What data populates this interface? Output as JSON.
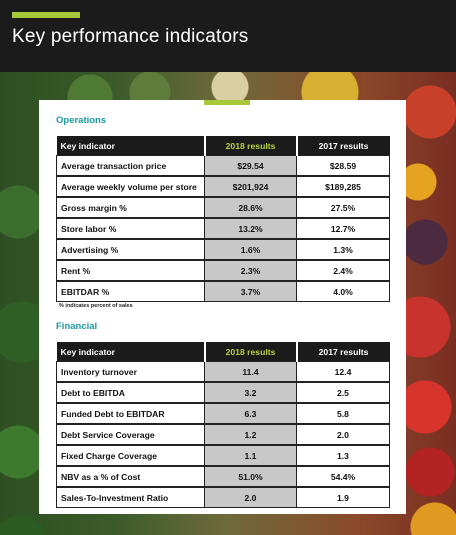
{
  "header": {
    "title": "Key performance indicators"
  },
  "operations": {
    "section_title": "Operations",
    "columns": [
      "Key indicator",
      "2018 results",
      "2017 results"
    ],
    "rows": [
      {
        "label": "Average transaction price",
        "v2018": "$29.54",
        "v2017": "$28.59"
      },
      {
        "label": "Average weekly volume per store",
        "v2018": "$201,924",
        "v2017": "$189,285"
      },
      {
        "label": "Gross margin %",
        "v2018": "28.6%",
        "v2017": "27.5%"
      },
      {
        "label": "Store labor %",
        "v2018": "13.2%",
        "v2017": "12.7%"
      },
      {
        "label": "Advertising %",
        "v2018": "1.6%",
        "v2017": "1.3%"
      },
      {
        "label": "Rent %",
        "v2018": "2.3%",
        "v2017": "2.4%"
      },
      {
        "label": "EBITDAR %",
        "v2018": "3.7%",
        "v2017": "4.0%"
      }
    ],
    "footnote": "% indicates percent of sales"
  },
  "financial": {
    "section_title": "Financial",
    "columns": [
      "Key indicator",
      "2018 results",
      "2017 results"
    ],
    "rows": [
      {
        "label": "Inventory turnover",
        "v2018": "11.4",
        "v2017": "12.4"
      },
      {
        "label": "Debt to EBITDA",
        "v2018": "3.2",
        "v2017": "2.5"
      },
      {
        "label": "Funded Debt to EBITDAR",
        "v2018": "6.3",
        "v2017": "5.8"
      },
      {
        "label": "Debt Service Coverage",
        "v2018": "1.2",
        "v2017": "2.0"
      },
      {
        "label": "Fixed Charge Coverage",
        "v2018": "1.1",
        "v2017": "1.3"
      },
      {
        "label": "NBV as a % of Cost",
        "v2018": "51.0%",
        "v2017": "54.4%"
      },
      {
        "label": "Sales-To-Investment Ratio",
        "v2018": "2.0",
        "v2017": "1.9"
      }
    ]
  },
  "colors": {
    "accent": "#a6c83a",
    "section": "#1a9aa0",
    "header_bg": "#1b1b1b",
    "highlight_cell": "#c8c8c8"
  }
}
